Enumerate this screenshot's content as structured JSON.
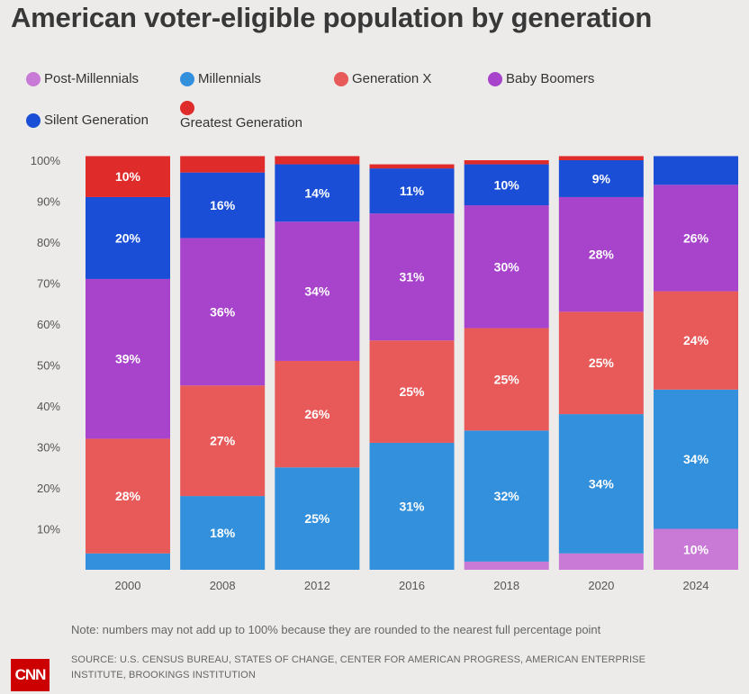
{
  "title": "American voter-eligible population by generation",
  "legend": [
    {
      "label": "Post-Millennials",
      "color": "#c87ad6"
    },
    {
      "label": "Millennials",
      "color": "#3290dc"
    },
    {
      "label": "Generation X",
      "color": "#e85a5a"
    },
    {
      "label": "Baby Boomers",
      "color": "#a843cc"
    },
    {
      "label": "Silent Generation",
      "color": "#1a4ed6"
    },
    {
      "label": "Greatest Generation",
      "color": "#e02b2b"
    }
  ],
  "note": "Note: numbers may not add up to 100% because they are rounded to the nearest full percentage point",
  "source": "SOURCE: U.S. CENSUS BUREAU, STATES OF CHANGE, CENTER FOR AMERICAN PROGRESS, AMERICAN ENTERPRISE INSTITUTE, BROOKINGS INSTITUTION",
  "logo_text": "CNN",
  "chart_data": {
    "type": "bar",
    "stacked": true,
    "title": "American voter-eligible population by generation",
    "xlabel": "",
    "ylabel": "",
    "ylim": [
      0,
      100
    ],
    "yticks": [
      "10%",
      "20%",
      "30%",
      "40%",
      "50%",
      "60%",
      "70%",
      "80%",
      "90%",
      "100%"
    ],
    "categories": [
      "2000",
      "2008",
      "2012",
      "2016",
      "2018",
      "2020",
      "2024"
    ],
    "series": [
      {
        "name": "Post-Millennials",
        "color": "#c87ad6",
        "values": [
          0,
          0,
          0,
          0,
          2,
          4,
          10
        ],
        "labels": [
          "",
          "",
          "",
          "",
          "",
          "",
          "10%"
        ]
      },
      {
        "name": "Millennials",
        "color": "#3290dc",
        "values": [
          4,
          18,
          25,
          31,
          32,
          34,
          34
        ],
        "labels": [
          "",
          "18%",
          "25%",
          "31%",
          "32%",
          "34%",
          "34%"
        ]
      },
      {
        "name": "Generation X",
        "color": "#e85a5a",
        "values": [
          28,
          27,
          26,
          25,
          25,
          25,
          24
        ],
        "labels": [
          "28%",
          "27%",
          "26%",
          "25%",
          "25%",
          "25%",
          "24%"
        ]
      },
      {
        "name": "Baby Boomers",
        "color": "#a843cc",
        "values": [
          39,
          36,
          34,
          31,
          30,
          28,
          26
        ],
        "labels": [
          "39%",
          "36%",
          "34%",
          "31%",
          "30%",
          "28%",
          "26%"
        ]
      },
      {
        "name": "Silent Generation",
        "color": "#1a4ed6",
        "values": [
          20,
          16,
          14,
          11,
          10,
          9,
          7
        ],
        "labels": [
          "20%",
          "16%",
          "14%",
          "11%",
          "10%",
          "9%",
          ""
        ]
      },
      {
        "name": "Greatest Generation",
        "color": "#e02b2b",
        "values": [
          10,
          4,
          2,
          1,
          1,
          1,
          0
        ],
        "labels": [
          "10%",
          "",
          "",
          "",
          "",
          "",
          ""
        ]
      }
    ]
  }
}
